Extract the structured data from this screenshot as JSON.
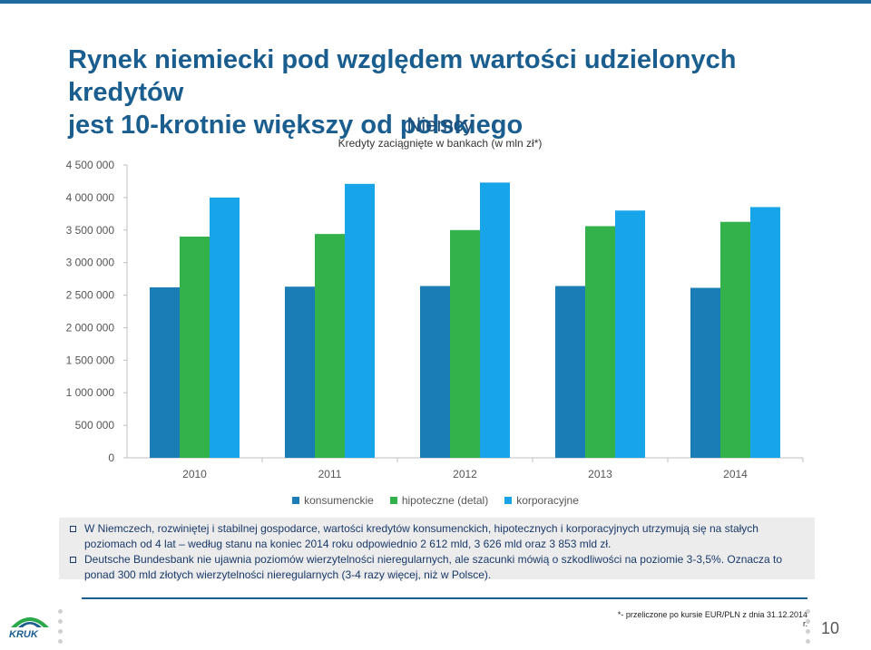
{
  "slide": {
    "title_line1": "Rynek niemiecki pod względem wartości udzielonych kredytów",
    "title_line2": "jest 10-krotnie większy od polskiego",
    "page_number": "10",
    "footnote": "*- przeliczone po kursie EUR/PLN z dnia 31.12.2014 r.",
    "logo_text": "KRUK"
  },
  "notes": [
    "W Niemczech, rozwiniętej i stabilnej gospodarce, wartości kredytów konsumenckich, hipotecznych i korporacyjnych utrzymują się na stałych poziomach od 4 lat – według stanu na koniec 2014 roku odpowiednio 2 612 mld, 3 626 mld oraz 3 853 mld zł.",
    "Deutsche Bundesbank nie ujawnia poziomów wierzytelności nieregularnych, ale szacunki mówią o szkodliwości na poziomie 3-3,5%. Oznacza to ponad 300 mld złotych wierzytelności nieregularnych (3-4 razy więcej, niż w Polsce)."
  ],
  "colors": {
    "konsumenckie": "#1a7db5",
    "hipoteczne": "#33b14b",
    "korporacyjne": "#17a4e8",
    "title": "#1a5d8f"
  },
  "chart_data": {
    "type": "bar",
    "title": "Niemcy",
    "subtitle": "Kredyty zaciągnięte w bankach (w mln zł*)",
    "categories": [
      "2010",
      "2011",
      "2012",
      "2013",
      "2014"
    ],
    "series": [
      {
        "name": "konsumenckie",
        "values": [
          2620000,
          2630000,
          2640000,
          2640000,
          2612000
        ]
      },
      {
        "name": "hipoteczne (detal)",
        "values": [
          3400000,
          3440000,
          3500000,
          3560000,
          3626000
        ]
      },
      {
        "name": "korporacyjne",
        "values": [
          4000000,
          4210000,
          4230000,
          3800000,
          3853000
        ]
      }
    ],
    "ylim": [
      0,
      4500000
    ],
    "yticks": [
      "0",
      "500 000",
      "1 000 000",
      "1 500 000",
      "2 000 000",
      "2 500 000",
      "3 000 000",
      "3 500 000",
      "4 000 000",
      "4 500 000"
    ],
    "legend_position": "bottom",
    "grid": false
  }
}
